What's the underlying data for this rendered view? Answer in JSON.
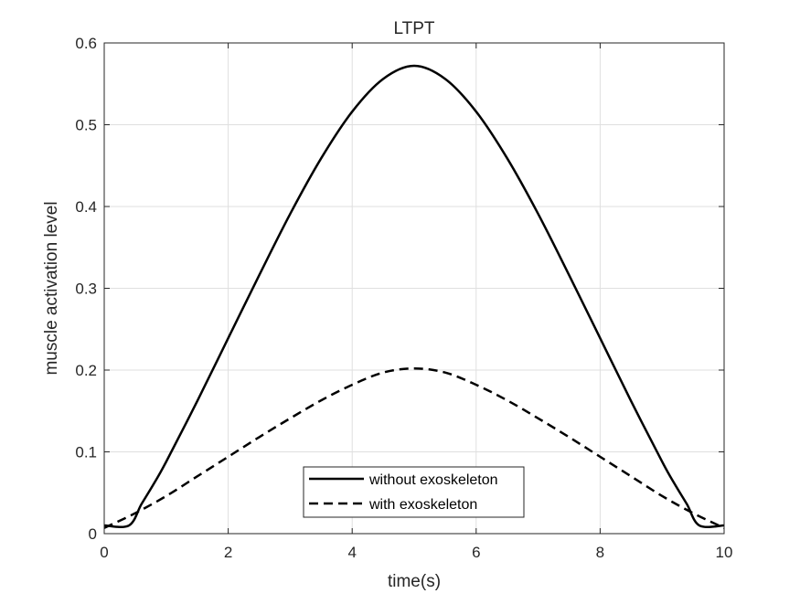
{
  "chart_data": {
    "type": "line",
    "title": "LTPT",
    "xlabel": "time(s)",
    "ylabel": "muscle activation level",
    "xlim": [
      0,
      10
    ],
    "ylim": [
      0,
      0.6
    ],
    "xticks": [
      0,
      2,
      4,
      6,
      8,
      10
    ],
    "xtick_labels": [
      "0",
      "2",
      "4",
      "6",
      "8",
      "10"
    ],
    "yticks": [
      0,
      0.1,
      0.2,
      0.3,
      0.4,
      0.5,
      0.6
    ],
    "ytick_labels": [
      "0",
      "0.1",
      "0.2",
      "0.3",
      "0.4",
      "0.5",
      "0.6"
    ],
    "grid": true,
    "legend_position": "bottom-center",
    "series": [
      {
        "name": "without exoskeleton",
        "style": "solid",
        "color": "#000000",
        "x": [
          0,
          0.4,
          0.6,
          0.8,
          1.0,
          1.5,
          2.0,
          2.5,
          3.0,
          3.5,
          4.0,
          4.5,
          5.0,
          5.5,
          6.0,
          6.5,
          7.0,
          7.5,
          8.0,
          8.5,
          9.0,
          9.2,
          9.4,
          9.6,
          10
        ],
        "y": [
          0.01,
          0.01,
          0.036,
          0.061,
          0.088,
          0.162,
          0.239,
          0.316,
          0.391,
          0.459,
          0.516,
          0.556,
          0.572,
          0.556,
          0.516,
          0.459,
          0.391,
          0.316,
          0.239,
          0.162,
          0.088,
          0.061,
          0.036,
          0.01,
          0.01
        ]
      },
      {
        "name": "with exoskeleton",
        "style": "dashed",
        "color": "#000000",
        "x": [
          0,
          0.5,
          1.0,
          1.5,
          2.0,
          2.5,
          3.0,
          3.5,
          4.0,
          4.5,
          5.0,
          5.5,
          6.0,
          6.5,
          7.0,
          7.5,
          8.0,
          8.5,
          9.0,
          9.5,
          10
        ],
        "y": [
          0.007,
          0.025,
          0.046,
          0.07,
          0.094,
          0.118,
          0.141,
          0.163,
          0.182,
          0.197,
          0.202,
          0.197,
          0.182,
          0.163,
          0.141,
          0.118,
          0.094,
          0.07,
          0.046,
          0.025,
          0.007
        ]
      }
    ]
  }
}
